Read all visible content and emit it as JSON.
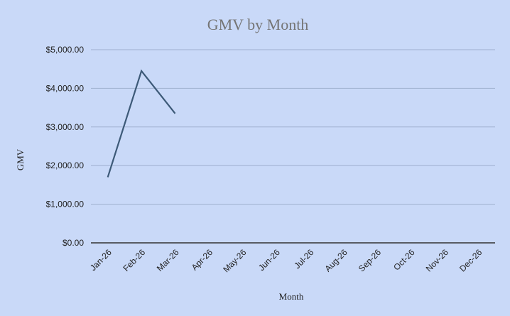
{
  "chart_data": {
    "type": "line",
    "title": "GMV by Month",
    "x_label": "Month",
    "y_label": "GMV",
    "categories": [
      "Jan-26",
      "Feb-26",
      "Mar-26",
      "Apr-26",
      "May-26",
      "Jun-26",
      "Jul-26",
      "Aug-26",
      "Sep-26",
      "Oct-26",
      "Nov-26",
      "Dec-26"
    ],
    "series": [
      {
        "name": "GMV",
        "color": "#3d5a78",
        "values": [
          1700,
          4450,
          3350,
          null,
          null,
          null,
          null,
          null,
          null,
          null,
          null,
          null
        ]
      }
    ],
    "ylim": [
      0,
      5000
    ],
    "yticks": [
      {
        "value": 0,
        "label": "$0.00"
      },
      {
        "value": 1000,
        "label": "$1,000.00"
      },
      {
        "value": 2000,
        "label": "$2,000.00"
      },
      {
        "value": 3000,
        "label": "$3,000.00"
      },
      {
        "value": 4000,
        "label": "$4,000.00"
      },
      {
        "value": 5000,
        "label": "$5,000.00"
      }
    ],
    "grid": true
  }
}
